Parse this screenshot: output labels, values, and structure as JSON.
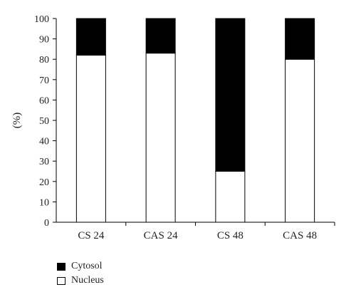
{
  "chart_data": {
    "type": "bar",
    "stacked": true,
    "categories": [
      "CS 24",
      "CAS 24",
      "CS 48",
      "CAS 48"
    ],
    "series": [
      {
        "name": "Nucleus",
        "values": [
          82,
          83,
          25,
          80
        ],
        "color": "#ffffff"
      },
      {
        "name": "Cytosol",
        "values": [
          18,
          17,
          75,
          20
        ],
        "color": "#000000"
      }
    ],
    "ylabel": "(%)",
    "ylim": [
      0,
      100
    ],
    "yticks": [
      0,
      10,
      20,
      30,
      40,
      50,
      60,
      70,
      80,
      90,
      100
    ],
    "grid": false,
    "legend_placement": "bottom-left"
  },
  "legend": [
    {
      "label": "Cytosol",
      "color": "#000000"
    },
    {
      "label": "Nucleus",
      "color": "#ffffff"
    }
  ]
}
